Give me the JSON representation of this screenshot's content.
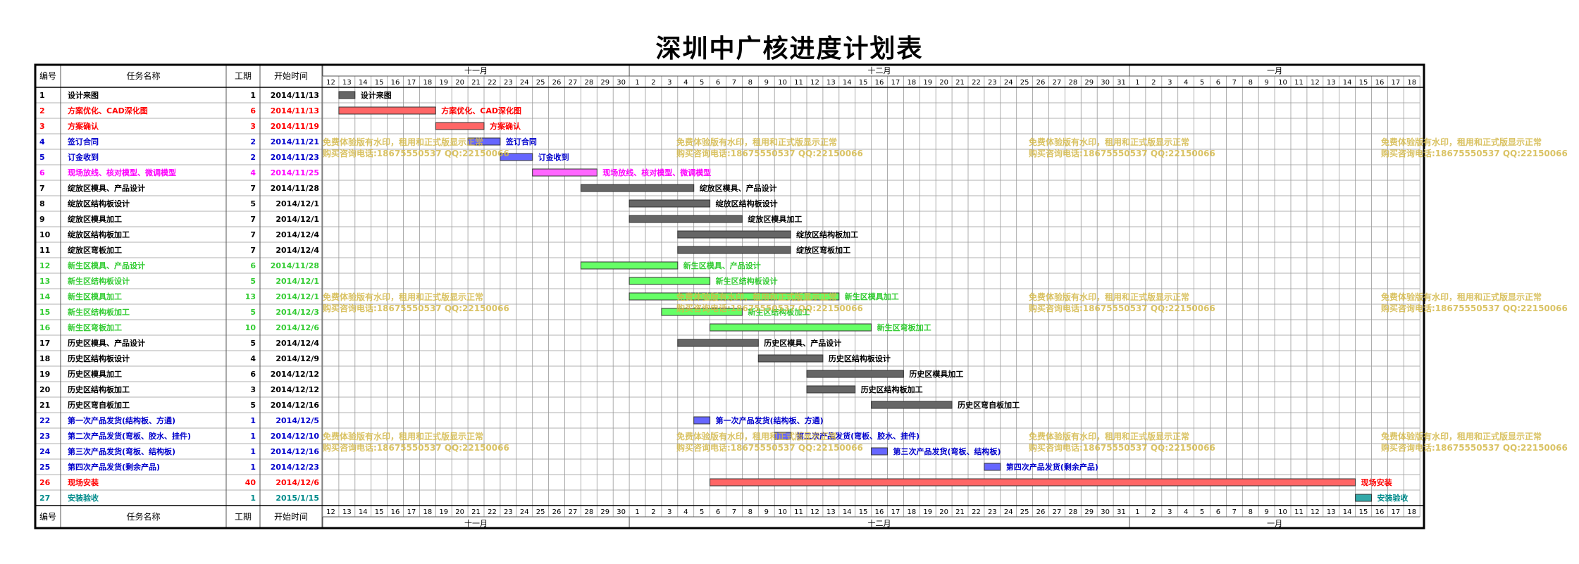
{
  "title": "深圳中广核进度计划表",
  "columns": {
    "id": "编号",
    "name": "任务名称",
    "dur": "工期",
    "start": "开始时间"
  },
  "months": [
    {
      "label": "十一月",
      "from": 0,
      "to": 18
    },
    {
      "label": "十二月",
      "from": 19,
      "to": 49
    },
    {
      "label": "一月",
      "from": 50,
      "to": 67
    }
  ],
  "days": [
    "12",
    "13",
    "14",
    "15",
    "16",
    "17",
    "18",
    "19",
    "20",
    "21",
    "22",
    "23",
    "24",
    "25",
    "26",
    "27",
    "28",
    "29",
    "30",
    "1",
    "2",
    "3",
    "4",
    "5",
    "6",
    "7",
    "8",
    "9",
    "10",
    "11",
    "12",
    "13",
    "14",
    "15",
    "16",
    "17",
    "18",
    "19",
    "20",
    "21",
    "22",
    "23",
    "24",
    "25",
    "26",
    "27",
    "28",
    "29",
    "30",
    "31",
    "1",
    "2",
    "3",
    "4",
    "5",
    "6",
    "7",
    "8",
    "9",
    "10",
    "11",
    "12",
    "13",
    "14",
    "15",
    "16",
    "17",
    "18"
  ],
  "watermark": {
    "line1": "免费体验版有水印，租用和正式版显示正常",
    "line2": "购买咨询电话:18675550537 QQ:22150066"
  },
  "colors": {
    "black": "#000000",
    "red": "#ff0000",
    "blue": "#0000cc",
    "magenta": "#ff00ff",
    "green": "#33dd33",
    "teal": "#008b8b",
    "watermark": "#d4b84a"
  },
  "chart_data": {
    "type": "gantt",
    "title": "深圳中广核进度计划表",
    "x_axis": {
      "start": "2014-11-12",
      "end": "2015-01-18",
      "unit": "day"
    },
    "tasks": [
      {
        "id": "1",
        "name": "设计来图",
        "dur": 1,
        "start": "2014/11/13",
        "offset": 1,
        "text_color": "#000000",
        "bar_color": "#666666"
      },
      {
        "id": "2",
        "name": "方案优化、CAD深化图",
        "dur": 6,
        "start": "2014/11/13",
        "offset": 1,
        "text_color": "#ff0000",
        "bar_color": "#ff6666"
      },
      {
        "id": "3",
        "name": "方案确认",
        "dur": 3,
        "start": "2014/11/19",
        "offset": 7,
        "text_color": "#ff0000",
        "bar_color": "#ff6666"
      },
      {
        "id": "4",
        "name": "签订合同",
        "dur": 2,
        "start": "2014/11/21",
        "offset": 9,
        "text_color": "#0000cc",
        "bar_color": "#6666ff"
      },
      {
        "id": "5",
        "name": "订金收到",
        "dur": 2,
        "start": "2014/11/23",
        "offset": 11,
        "text_color": "#0000cc",
        "bar_color": "#6666ff"
      },
      {
        "id": "6",
        "name": "现场放线、核对模型、微调模型",
        "dur": 4,
        "start": "2014/11/25",
        "offset": 13,
        "text_color": "#ff00ff",
        "bar_color": "#ff66ff"
      },
      {
        "id": "7",
        "name": "绽放区模具、产品设计",
        "dur": 7,
        "start": "2014/11/28",
        "offset": 16,
        "text_color": "#000000",
        "bar_color": "#666666"
      },
      {
        "id": "8",
        "name": "绽放区结构板设计",
        "dur": 5,
        "start": "2014/12/1",
        "offset": 19,
        "text_color": "#000000",
        "bar_color": "#666666"
      },
      {
        "id": "9",
        "name": "绽放区模具加工",
        "dur": 7,
        "start": "2014/12/1",
        "offset": 19,
        "text_color": "#000000",
        "bar_color": "#666666"
      },
      {
        "id": "10",
        "name": "绽放区结构板加工",
        "dur": 7,
        "start": "2014/12/4",
        "offset": 22,
        "text_color": "#000000",
        "bar_color": "#666666"
      },
      {
        "id": "11",
        "name": "绽放区弯板加工",
        "dur": 7,
        "start": "2014/12/4",
        "offset": 22,
        "text_color": "#000000",
        "bar_color": "#666666"
      },
      {
        "id": "12",
        "name": "新生区模具、产品设计",
        "dur": 6,
        "start": "2014/11/28",
        "offset": 16,
        "text_color": "#33cc33",
        "bar_color": "#66ff66"
      },
      {
        "id": "13",
        "name": "新生区结构板设计",
        "dur": 5,
        "start": "2014/12/1",
        "offset": 19,
        "text_color": "#33cc33",
        "bar_color": "#66ff66"
      },
      {
        "id": "14",
        "name": "新生区模具加工",
        "dur": 13,
        "start": "2014/12/1",
        "offset": 19,
        "text_color": "#33cc33",
        "bar_color": "#66ff66"
      },
      {
        "id": "15",
        "name": "新生区结构板加工",
        "dur": 5,
        "start": "2014/12/3",
        "offset": 21,
        "text_color": "#33cc33",
        "bar_color": "#66ff66"
      },
      {
        "id": "16",
        "name": "新生区弯板加工",
        "dur": 10,
        "start": "2014/12/6",
        "offset": 24,
        "text_color": "#33cc33",
        "bar_color": "#66ff66"
      },
      {
        "id": "17",
        "name": "历史区模具、产品设计",
        "dur": 5,
        "start": "2014/12/4",
        "offset": 22,
        "text_color": "#000000",
        "bar_color": "#666666"
      },
      {
        "id": "18",
        "name": "历史区结构板设计",
        "dur": 4,
        "start": "2014/12/9",
        "offset": 27,
        "text_color": "#000000",
        "bar_color": "#666666"
      },
      {
        "id": "19",
        "name": "历史区模具加工",
        "dur": 6,
        "start": "2014/12/12",
        "offset": 30,
        "text_color": "#000000",
        "bar_color": "#666666"
      },
      {
        "id": "20",
        "name": "历史区结构板加工",
        "dur": 3,
        "start": "2014/12/12",
        "offset": 30,
        "text_color": "#000000",
        "bar_color": "#666666"
      },
      {
        "id": "21",
        "name": "历史区弯自板加工",
        "dur": 5,
        "start": "2014/12/16",
        "offset": 34,
        "text_color": "#000000",
        "bar_color": "#666666"
      },
      {
        "id": "22",
        "name": "第一次产品发货(结构板、方通)",
        "dur": 1,
        "start": "2014/12/5",
        "offset": 23,
        "text_color": "#0000cc",
        "bar_color": "#6666ff"
      },
      {
        "id": "23",
        "name": "第二次产品发货(弯板、胶水、挂件)",
        "dur": 1,
        "start": "2014/12/10",
        "offset": 28,
        "text_color": "#0000cc",
        "bar_color": "#6666ff"
      },
      {
        "id": "24",
        "name": "第三次产品发货(弯板、结构板)",
        "dur": 1,
        "start": "2014/12/16",
        "offset": 34,
        "text_color": "#0000cc",
        "bar_color": "#6666ff"
      },
      {
        "id": "25",
        "name": "第四次产品发货(剩余产品)",
        "dur": 1,
        "start": "2014/12/23",
        "offset": 41,
        "text_color": "#0000cc",
        "bar_color": "#6666ff"
      },
      {
        "id": "26",
        "name": "现场安装",
        "dur": 40,
        "start": "2014/12/6",
        "offset": 24,
        "text_color": "#ff0000",
        "bar_color": "#ff6666"
      },
      {
        "id": "27",
        "name": "安装验收",
        "dur": 1,
        "start": "2015/1/15",
        "offset": 64,
        "text_color": "#008b8b",
        "bar_color": "#33aaaa"
      }
    ]
  }
}
